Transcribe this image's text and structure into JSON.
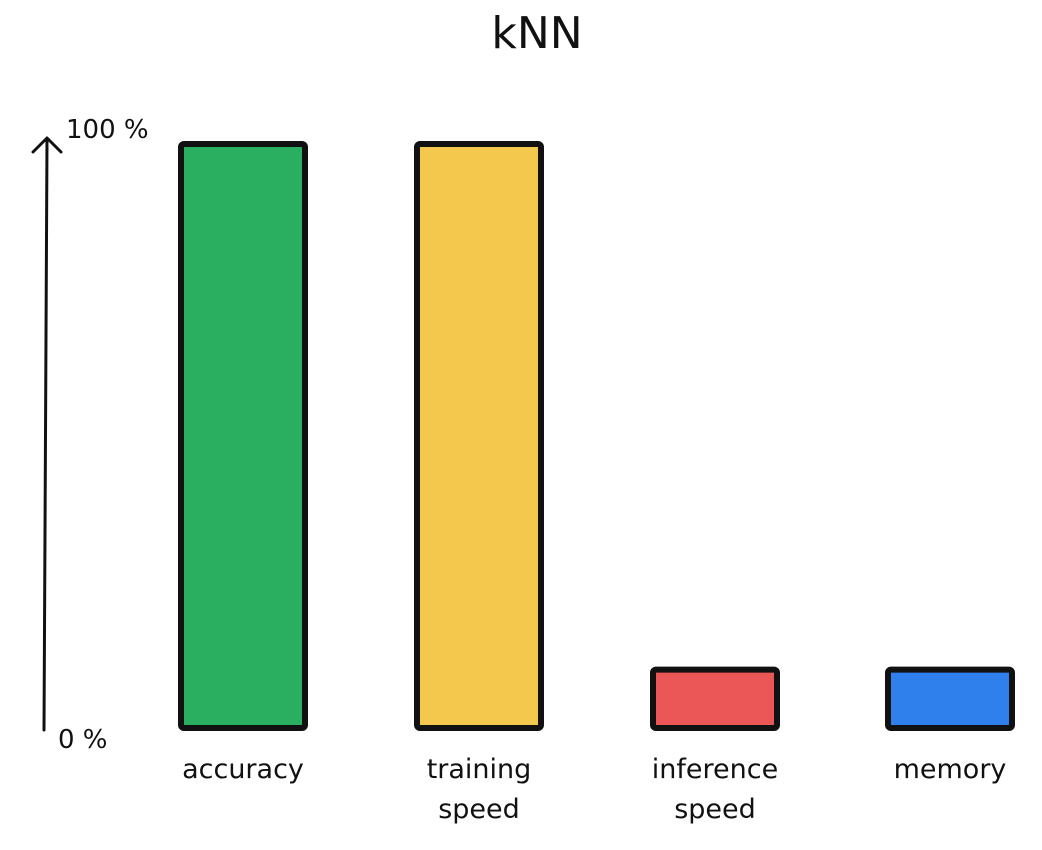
{
  "chart_data": {
    "type": "bar",
    "title": "kNN",
    "categories": [
      "accuracy",
      "training speed",
      "inference speed",
      "memory"
    ],
    "category_lines": [
      [
        "accuracy"
      ],
      [
        "training",
        "speed"
      ],
      [
        "inference",
        "speed"
      ],
      [
        "memory"
      ]
    ],
    "values": [
      100,
      100,
      10,
      10
    ],
    "colors": [
      "#2aae60",
      "#f4c84d",
      "#eb5757",
      "#2f80ed"
    ],
    "ylim": [
      0,
      100
    ],
    "y_unit": "%",
    "y_ticks": [
      "100 %",
      "0 %"
    ],
    "xlabel": "",
    "ylabel": "",
    "grid": false,
    "legend": "none"
  }
}
